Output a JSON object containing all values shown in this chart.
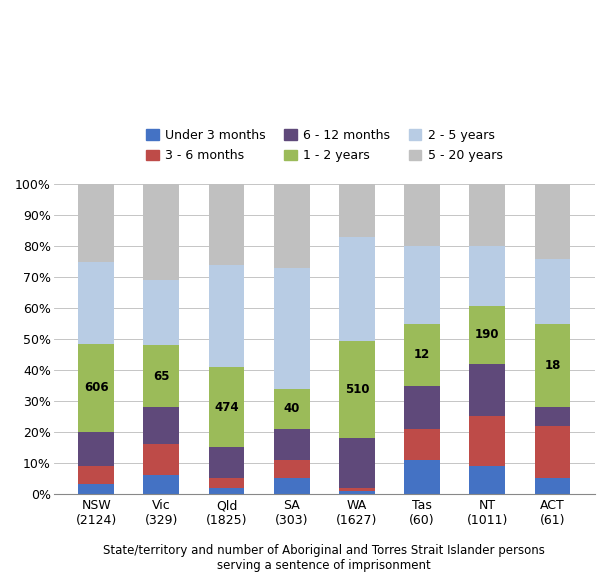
{
  "categories": [
    "NSW\n(2124)",
    "Vic\n(329)",
    "Qld\n(1825)",
    "SA\n(303)",
    "WA\n(1627)",
    "Tas\n(60)",
    "NT\n(1011)",
    "ACT\n(61)"
  ],
  "series": {
    "Under 3 months": [
      3.0,
      6.0,
      2.0,
      5.0,
      1.0,
      11.0,
      9.0,
      5.0
    ],
    "3 - 6 months": [
      6.0,
      10.0,
      3.0,
      6.0,
      1.0,
      10.0,
      16.0,
      17.0
    ],
    "6 - 12 months": [
      11.0,
      12.0,
      10.0,
      10.0,
      16.0,
      14.0,
      17.0,
      6.0
    ],
    "1 - 2 years": [
      28.5,
      20.0,
      26.0,
      13.0,
      31.5,
      20.0,
      18.8,
      27.0
    ],
    "2 - 5 years": [
      26.5,
      21.0,
      33.0,
      39.0,
      33.5,
      25.0,
      19.2,
      21.0
    ],
    "5 - 20 years": [
      25.0,
      31.0,
      26.0,
      27.0,
      17.0,
      20.0,
      20.0,
      24.0
    ]
  },
  "colors": {
    "Under 3 months": "#4472C4",
    "3 - 6 months": "#BE4B48",
    "6 - 12 months": "#5F497A",
    "1 - 2 years": "#9BBB59",
    "2 - 5 years": "#B8CCE4",
    "5 - 20 years": "#C0C0C0"
  },
  "bar_labels": {
    "1 - 2 years": [
      606,
      65,
      474,
      40,
      510,
      12,
      190,
      18
    ]
  },
  "xlabel": "State/territory and number of Aboriginal and Torres Strait Islander persons\nserving a sentence of imprisonment",
  "ylim": [
    0,
    100
  ],
  "yticks": [
    0,
    10,
    20,
    30,
    40,
    50,
    60,
    70,
    80,
    90,
    100
  ],
  "legend_order": [
    "Under 3 months",
    "3 - 6 months",
    "6 - 12 months",
    "1 - 2 years",
    "2 - 5 years",
    "5 - 20 years"
  ],
  "background_color": "#FFFFFF",
  "bar_width": 0.55
}
